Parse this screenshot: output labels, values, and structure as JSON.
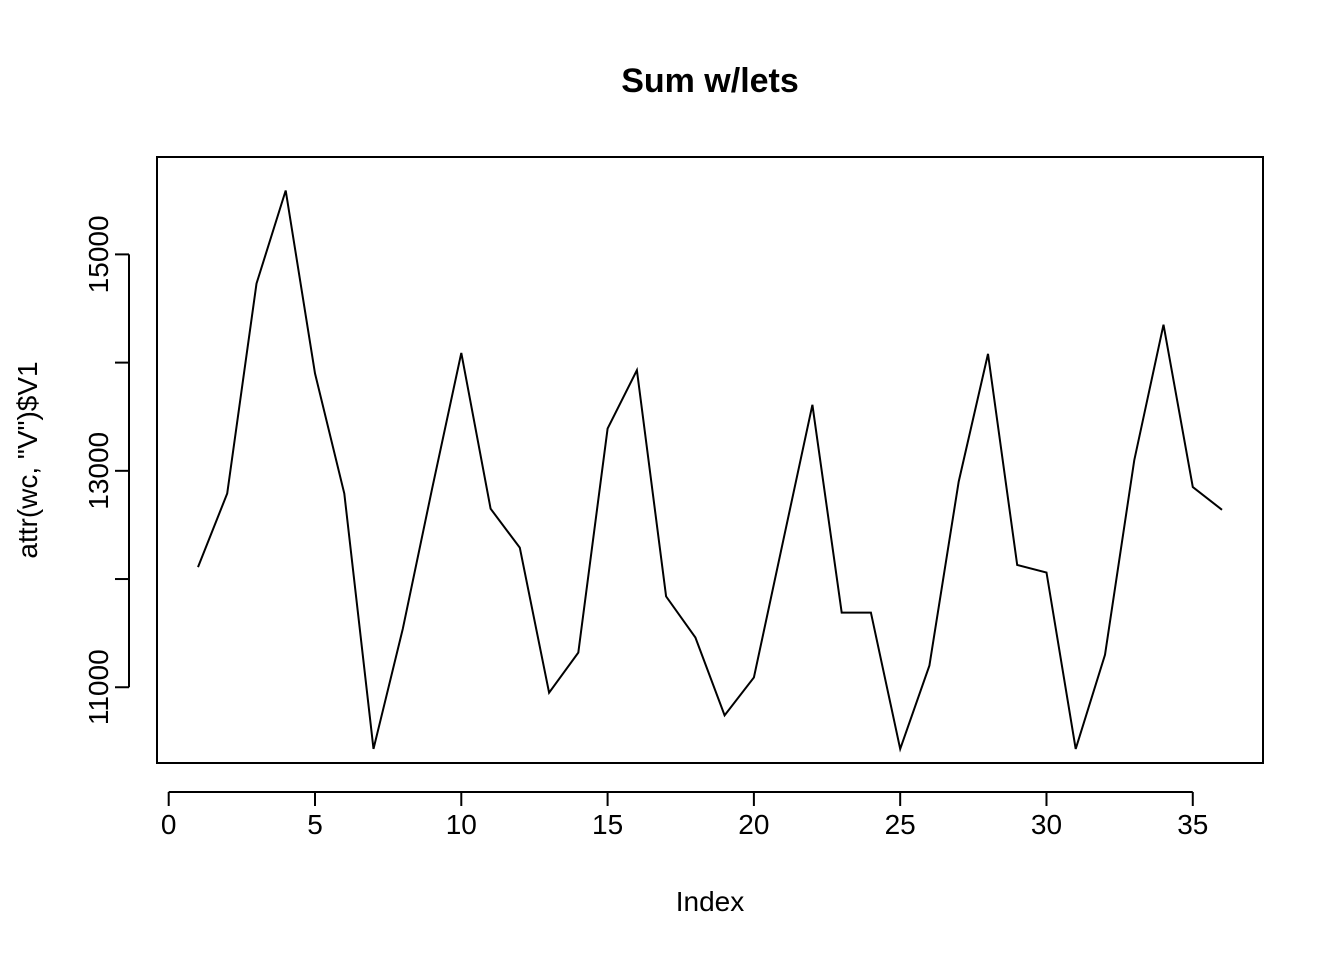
{
  "chart_data": {
    "type": "line",
    "title": "Sum w/lets",
    "xlabel": "Index",
    "ylabel": "attr(wc, \"V\")$V1",
    "xlim": [
      -0.4,
      37.4
    ],
    "ylim": [
      10300,
      15900
    ],
    "x_ticks": [
      0,
      5,
      10,
      15,
      20,
      25,
      30,
      35
    ],
    "y_ticks": [
      11000,
      13000,
      15000
    ],
    "grid": false,
    "series": [
      {
        "x": [
          1,
          2,
          3,
          4,
          5,
          6,
          7,
          8,
          9,
          10,
          11,
          12,
          13,
          14,
          15,
          16,
          17,
          18,
          19,
          20,
          21,
          22,
          23,
          24,
          25,
          26,
          27,
          28,
          29,
          30,
          31,
          32,
          33,
          34,
          35,
          36
        ],
        "values": [
          12110,
          12790,
          14730,
          15590,
          13900,
          12790,
          10430,
          11540,
          12830,
          14090,
          12650,
          12290,
          10950,
          11320,
          13390,
          13930,
          11840,
          11460,
          10740,
          11090,
          12350,
          13610,
          11690,
          11690,
          10430,
          11200,
          12900,
          14080,
          12130,
          12060,
          10430,
          11300,
          13100,
          14350,
          12850,
          12640
        ]
      }
    ]
  }
}
